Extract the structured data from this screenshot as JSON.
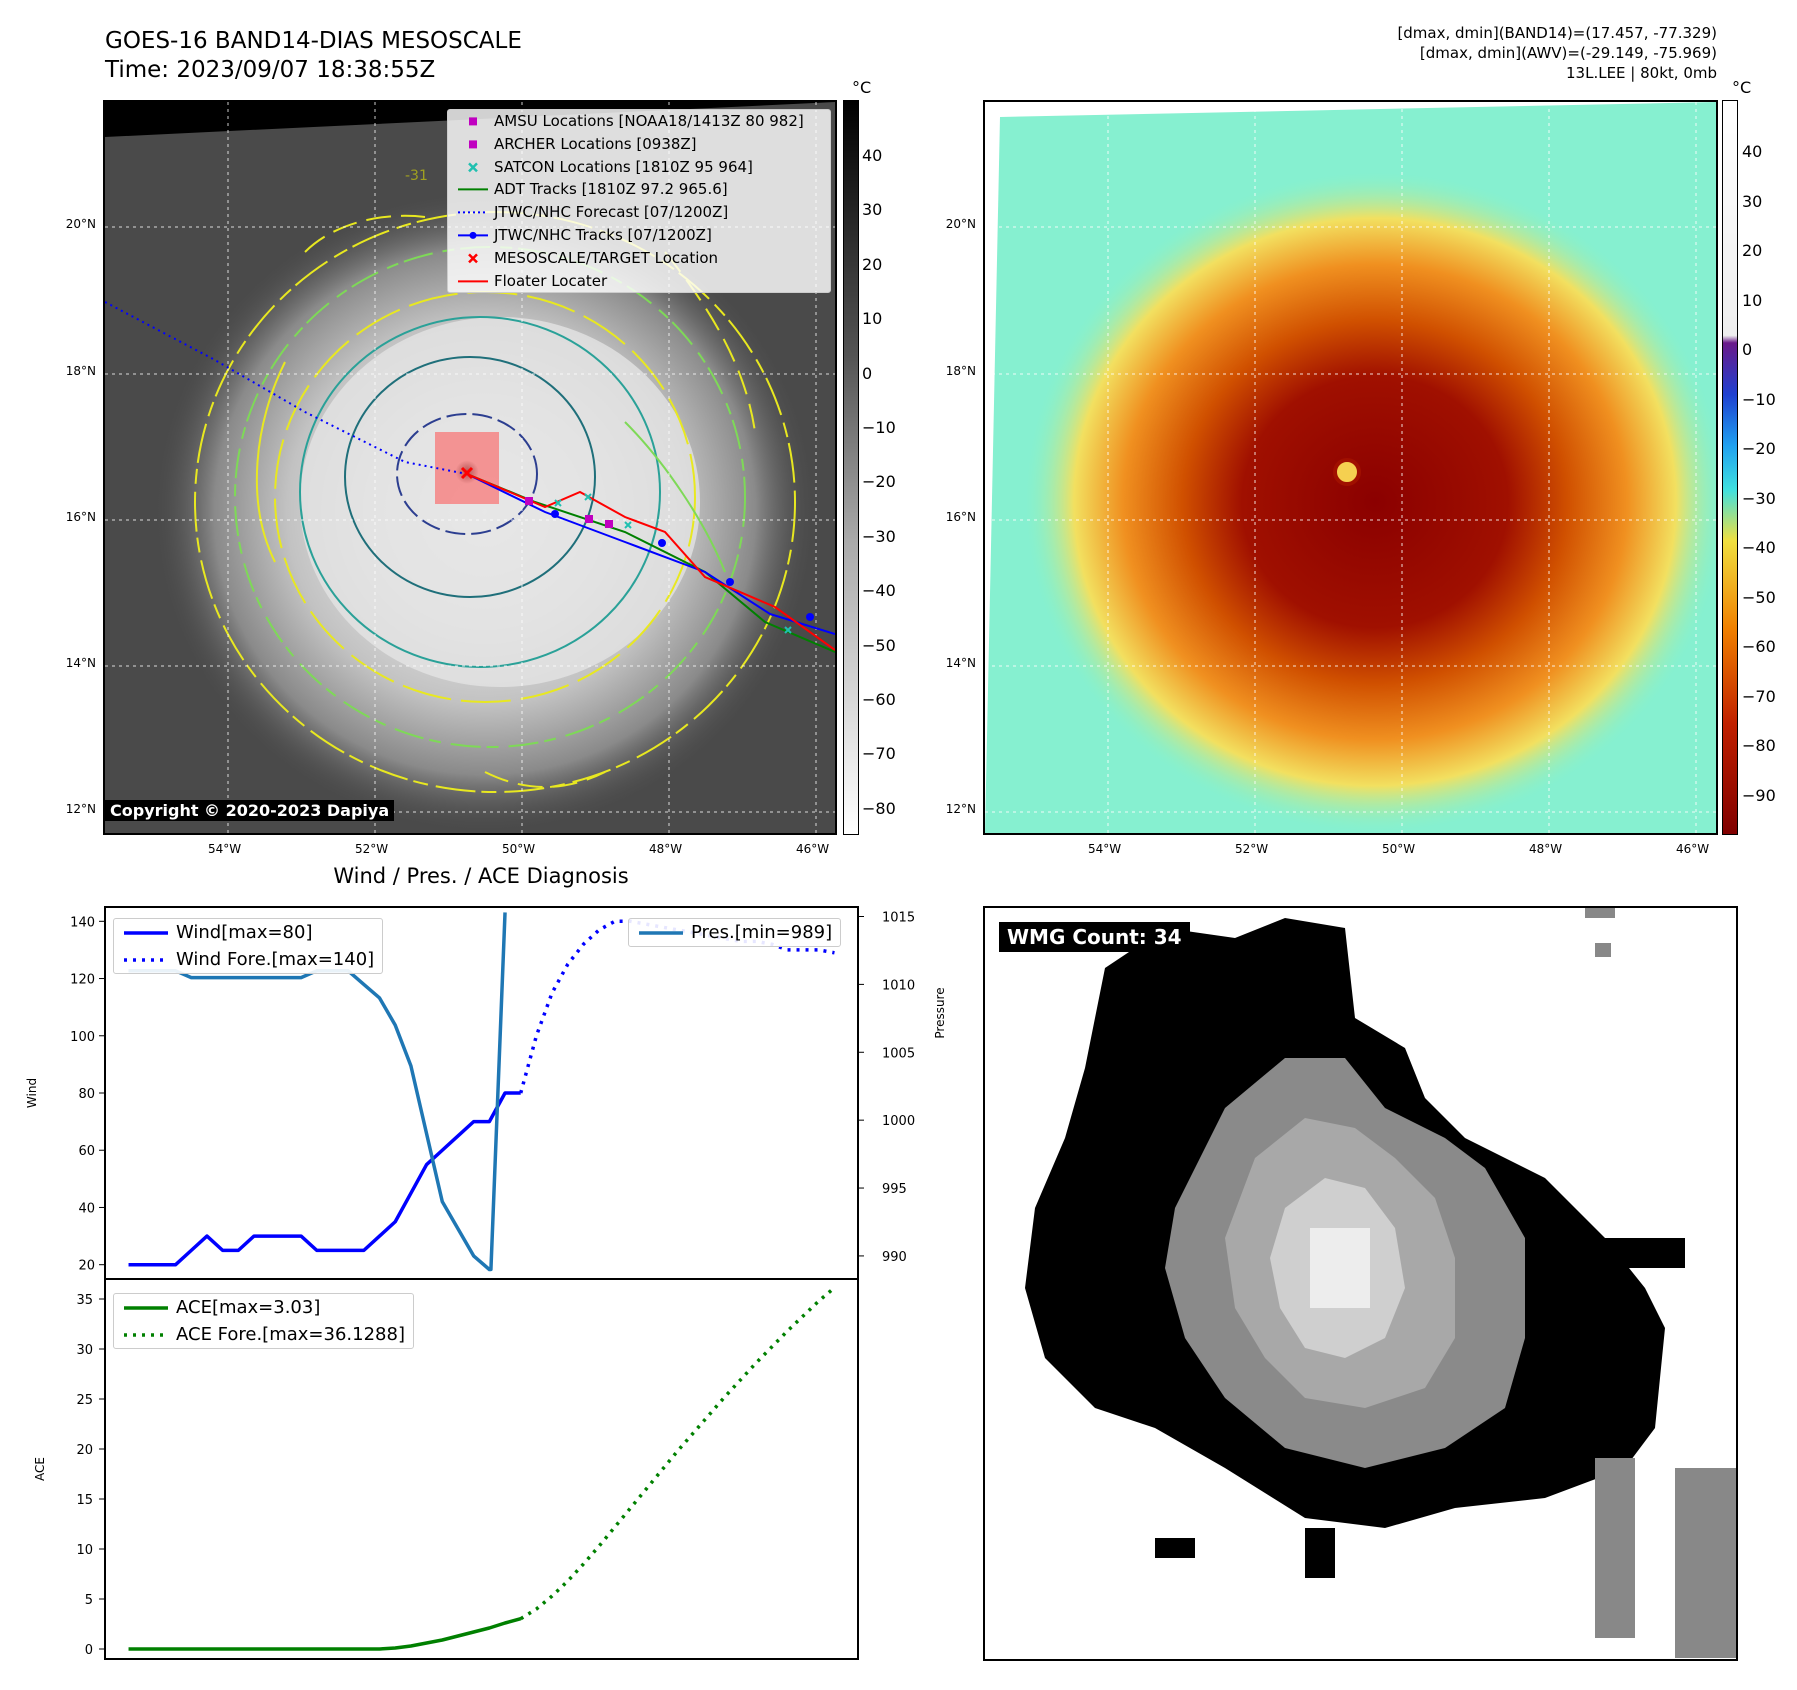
{
  "header": {
    "title_line1": "GOES-16 BAND14-DIAS MESOSCALE",
    "title_line2": "Time: 2023/09/07 18:38:55Z",
    "info_line1": "[dmax, dmin](BAND14)=(17.457, -77.329)",
    "info_line2": "[dmax, dmin](AWV)=(-29.149, -75.969)",
    "info_line3": "13L.LEE | 80kt, 0mb"
  },
  "map": {
    "lat_labels": [
      "20°N",
      "18°N",
      "16°N",
      "14°N",
      "12°N"
    ],
    "lon_labels": [
      "54°W",
      "52°W",
      "50°W",
      "48°W",
      "46°W"
    ],
    "copyright": "Copyright © 2020-2023 Dapiya",
    "contour_label": "-31"
  },
  "legend_map": [
    {
      "label": "AMSU Locations [NOAA18/1413Z 80 982]",
      "symbol": "square",
      "color": "#c000c0"
    },
    {
      "label": "ARCHER Locations [0938Z]",
      "symbol": "square",
      "color": "#c000c0"
    },
    {
      "label": "SATCON Locations [1810Z 95 964]",
      "symbol": "x",
      "color": "#20c0b0"
    },
    {
      "label": "ADT Tracks [1810Z 97.2 965.6]",
      "symbol": "line",
      "color": "#008000"
    },
    {
      "label": "JTWC/NHC Forecast [07/1200Z]",
      "symbol": "dotted",
      "color": "#0000ff"
    },
    {
      "label": "JTWC/NHC Tracks [07/1200Z]",
      "symbol": "line-dot",
      "color": "#0000ff"
    },
    {
      "label": "MESOSCALE/TARGET Location",
      "symbol": "x",
      "color": "#ff0000"
    },
    {
      "label": "Floater Locater",
      "symbol": "line",
      "color": "#ff0000"
    }
  ],
  "colorbar_left": {
    "unit": "°C",
    "ticks": [
      "40",
      "30",
      "20",
      "10",
      "0",
      "−10",
      "−20",
      "−30",
      "−40",
      "−50",
      "−60",
      "−70",
      "−80"
    ]
  },
  "colorbar_right": {
    "unit": "°C",
    "ticks": [
      "40",
      "30",
      "20",
      "10",
      "0",
      "−10",
      "−20",
      "−30",
      "−40",
      "−50",
      "−60",
      "−70",
      "−80",
      "−90"
    ]
  },
  "diagnosis": {
    "title": "Wind / Pres. / ACE Diagnosis",
    "wind_axis_label": "Wind",
    "pressure_axis_label": "Pressure",
    "ace_axis_label": "ACE",
    "wind_ticks": [
      "140",
      "120",
      "100",
      "80",
      "60",
      "40",
      "20"
    ],
    "pres_ticks": [
      "1015",
      "1010",
      "1005",
      "1000",
      "995",
      "990"
    ],
    "ace_ticks": [
      "35",
      "30",
      "25",
      "20",
      "15",
      "10",
      "5",
      "0"
    ],
    "legend_wind": [
      {
        "label": "Wind[max=80]",
        "style": "solid",
        "color": "#0000ff"
      },
      {
        "label": "Wind Fore.[max=140]",
        "style": "dotted",
        "color": "#0000ff"
      }
    ],
    "legend_pres": [
      {
        "label": "Pres.[min=989]",
        "style": "solid",
        "color": "#1f77b4"
      }
    ],
    "legend_ace": [
      {
        "label": "ACE[max=3.03]",
        "style": "solid",
        "color": "#008000"
      },
      {
        "label": "ACE Fore.[max=36.1288]",
        "style": "dotted",
        "color": "#008000"
      }
    ]
  },
  "wmg": {
    "label": "WMG Count: 34"
  },
  "chart_data": [
    {
      "type": "line",
      "title": "Wind / Pres. / ACE Diagnosis",
      "ylabel": "Wind",
      "ylim": [
        15,
        145
      ],
      "y2label": "Pressure",
      "y2lim": [
        988.3,
        1015.7
      ],
      "series": [
        {
          "name": "Wind[max=80]",
          "axis": "left",
          "style": "solid",
          "color": "#0000ff",
          "x": [
            0,
            1,
            2,
            3,
            4,
            5,
            6,
            7,
            8,
            9,
            10,
            11,
            12,
            13,
            14,
            15,
            16,
            17,
            18,
            19,
            20,
            21,
            22,
            23,
            24,
            25
          ],
          "y": [
            20,
            20,
            20,
            20,
            25,
            30,
            25,
            25,
            30,
            30,
            30,
            30,
            25,
            25,
            25,
            25,
            30,
            35,
            45,
            55,
            60,
            65,
            70,
            70,
            80,
            80
          ]
        },
        {
          "name": "Wind Fore.[max=140]",
          "axis": "left",
          "style": "dotted",
          "color": "#0000ff",
          "x": [
            25,
            26,
            27,
            28,
            29,
            30,
            31,
            32,
            33,
            34,
            35,
            36,
            37,
            38,
            39,
            40,
            41,
            42,
            43,
            44,
            45
          ],
          "y": [
            80,
            100,
            115,
            125,
            132,
            137,
            140,
            140,
            139,
            138,
            137,
            136,
            135,
            134,
            133,
            133,
            132,
            130,
            130,
            130,
            129
          ]
        },
        {
          "name": "Pres.[min=989]",
          "axis": "right",
          "style": "solid",
          "color": "#1f77b4",
          "x": [
            0,
            1,
            2,
            3,
            4,
            5,
            6,
            7,
            8,
            9,
            10,
            11,
            12,
            13,
            14,
            15,
            16,
            17,
            18,
            19,
            20,
            21,
            22,
            23,
            23.1,
            24.0
          ],
          "y": [
            1011,
            1011,
            1011,
            1011,
            1010.5,
            1010.5,
            1010.5,
            1010.5,
            1010.5,
            1010.5,
            1010.5,
            1010.5,
            1011,
            1011,
            1011,
            1010,
            1009,
            1007,
            1004,
            999,
            994,
            992,
            990,
            989,
            989,
            1015.3
          ]
        }
      ]
    },
    {
      "type": "line",
      "ylabel": "ACE",
      "ylim": [
        -1,
        37
      ],
      "series": [
        {
          "name": "ACE[max=3.03]",
          "style": "solid",
          "color": "#008000",
          "x": [
            0,
            2,
            4,
            6,
            8,
            10,
            12,
            14,
            16,
            17,
            18,
            19,
            20,
            21,
            22,
            23,
            24,
            25
          ],
          "y": [
            0,
            0,
            0,
            0,
            0,
            0,
            0,
            0,
            0,
            0.1,
            0.3,
            0.6,
            0.9,
            1.3,
            1.7,
            2.1,
            2.6,
            3.03
          ]
        },
        {
          "name": "ACE Fore.[max=36.1288]",
          "style": "dotted",
          "color": "#008000",
          "x": [
            25,
            26,
            27,
            28,
            29,
            30,
            31,
            32,
            33,
            34,
            35,
            36,
            37,
            38,
            39,
            40,
            41,
            42,
            43,
            44,
            45
          ],
          "y": [
            3.03,
            4.0,
            5.3,
            6.8,
            8.5,
            10.3,
            12.2,
            14.1,
            16.0,
            17.9,
            19.8,
            21.6,
            23.4,
            25.2,
            26.9,
            28.6,
            30.2,
            31.8,
            33.3,
            34.8,
            36.13
          ]
        }
      ]
    }
  ]
}
